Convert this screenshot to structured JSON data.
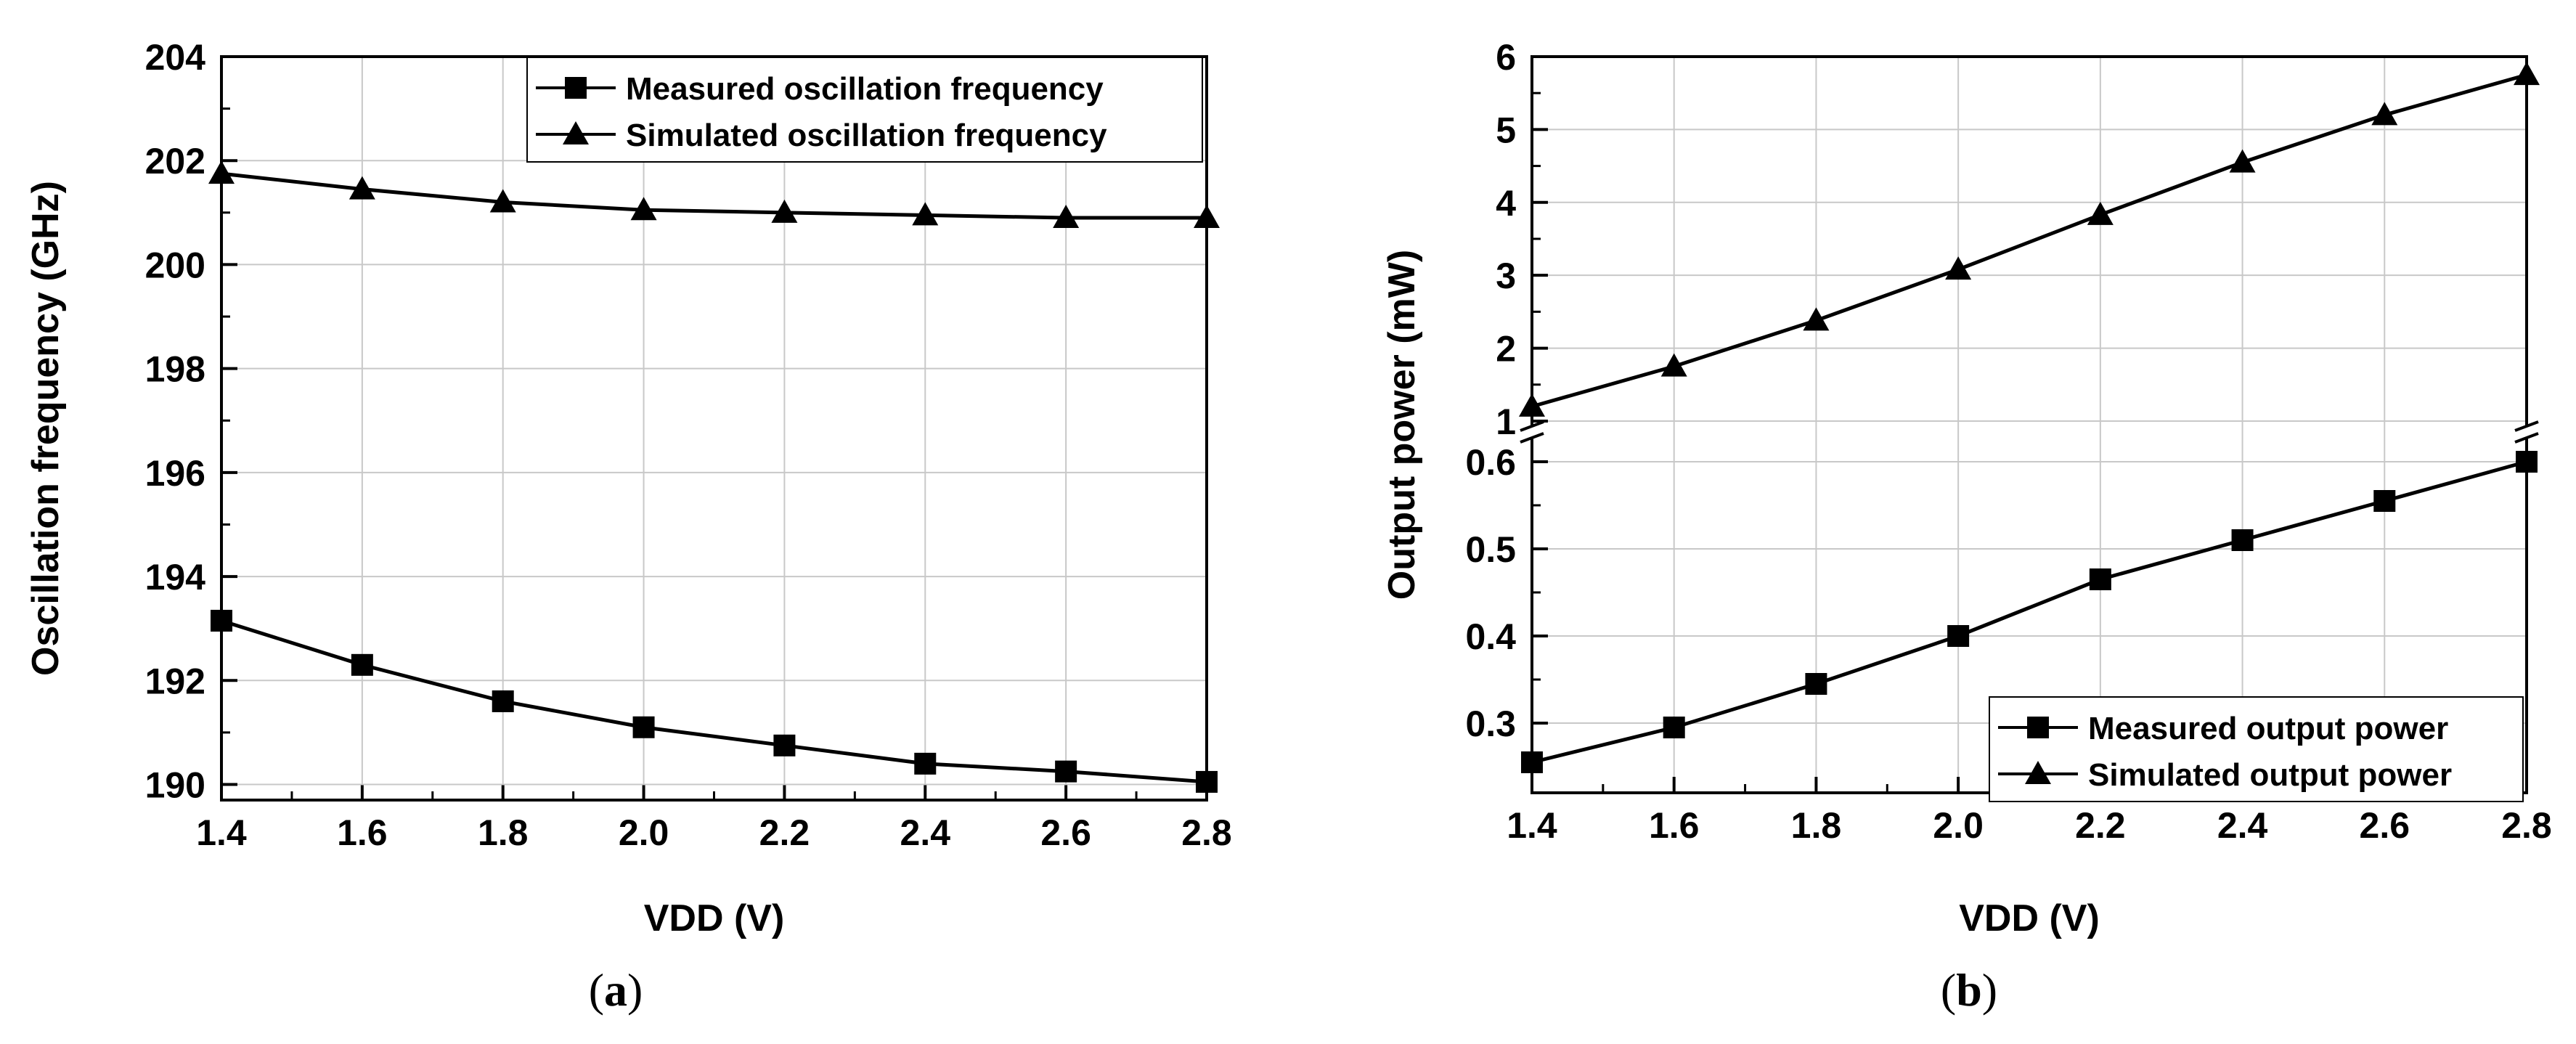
{
  "chart_data": [
    {
      "panel": "(a)",
      "panel_letter": "a",
      "type": "line",
      "xlabel": "VDD (V)",
      "ylabel": "Oscillation frequency (GHz)",
      "xlim": [
        1.4,
        2.8
      ],
      "ylim": [
        189.7,
        204
      ],
      "xticks": [
        "1.4",
        "1.6",
        "1.8",
        "2.0",
        "2.2",
        "2.4",
        "2.6",
        "2.8"
      ],
      "yticks": [
        "190",
        "192",
        "194",
        "196",
        "198",
        "200",
        "202",
        "204"
      ],
      "grid": true,
      "legend_position": "top-right",
      "x": [
        1.4,
        1.6,
        1.8,
        2.0,
        2.2,
        2.4,
        2.6,
        2.8
      ],
      "series": [
        {
          "name": "Measured oscillation frequency",
          "marker": "square",
          "values": [
            193.15,
            192.3,
            191.6,
            191.1,
            190.75,
            190.4,
            190.25,
            190.05
          ]
        },
        {
          "name": "Simulated oscillation frequency",
          "marker": "triangle",
          "values": [
            201.75,
            201.45,
            201.2,
            201.05,
            201.0,
            200.95,
            200.9,
            200.9
          ]
        }
      ]
    },
    {
      "panel": "(b)",
      "panel_letter": "b",
      "type": "line",
      "xlabel": "VDD (V)",
      "ylabel": "Output power (mW)",
      "xlim": [
        1.4,
        2.8
      ],
      "axis_break": true,
      "ylim_upper": [
        0.9,
        6
      ],
      "ylim_lower": [
        0.22,
        0.63
      ],
      "xticks": [
        "1.4",
        "1.6",
        "1.8",
        "2.0",
        "2.2",
        "2.4",
        "2.6",
        "2.8"
      ],
      "yticks_upper": [
        "1",
        "2",
        "3",
        "4",
        "5",
        "6"
      ],
      "yticks_lower": [
        "0.3",
        "0.4",
        "0.5",
        "0.6"
      ],
      "grid": true,
      "legend_position": "bottom-right",
      "x": [
        1.4,
        1.6,
        1.8,
        2.0,
        2.2,
        2.4,
        2.6,
        2.8
      ],
      "series": [
        {
          "name": "Measured output power",
          "marker": "square",
          "values": [
            0.255,
            0.295,
            0.345,
            0.4,
            0.465,
            0.51,
            0.555,
            0.6
          ]
        },
        {
          "name": "Simulated output power",
          "marker": "triangle",
          "values": [
            1.2,
            1.75,
            2.38,
            3.08,
            3.83,
            4.55,
            5.2,
            5.75
          ]
        }
      ]
    }
  ]
}
